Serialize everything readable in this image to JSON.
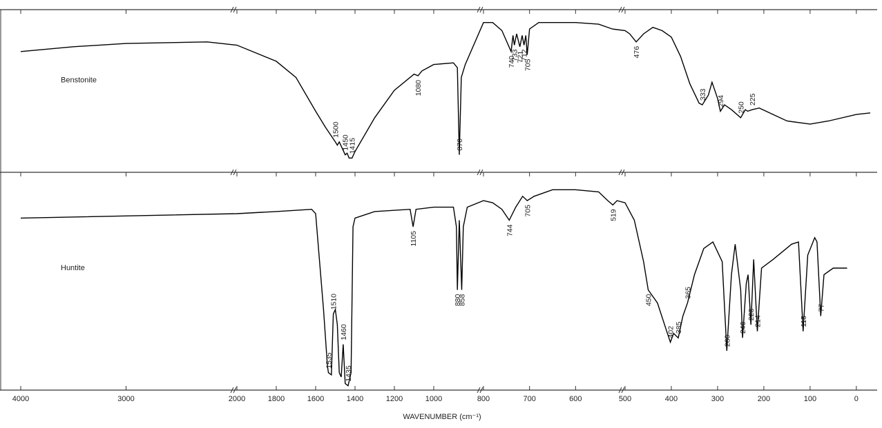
{
  "chart_data": {
    "type": "line",
    "xlabel": "WAVENUMBER (cm⁻¹)",
    "xlim": [
      4000,
      -45
    ],
    "xbreaks": [
      2000,
      800,
      500
    ],
    "ylim": [
      0,
      100
    ],
    "xticks": [
      4000,
      3000,
      2000,
      1800,
      1600,
      1400,
      1200,
      1000,
      800,
      700,
      600,
      500,
      400,
      300,
      200,
      100,
      0
    ],
    "series": [
      {
        "name": "Benstonite",
        "color": "#000000",
        "x": [
          4000,
          3500,
          3000,
          2230,
          2000,
          1800,
          1700,
          1600,
          1550,
          1500,
          1490,
          1480,
          1465,
          1450,
          1440,
          1430,
          1415,
          1400,
          1300,
          1200,
          1100,
          1080,
          1060,
          1000,
          900,
          880,
          870,
          860,
          840,
          800,
          780,
          760,
          740,
          736,
          733,
          728,
          721,
          716,
          712,
          708,
          705,
          700,
          680,
          650,
          600,
          550,
          520,
          500,
          490,
          476,
          460,
          440,
          420,
          400,
          380,
          360,
          340,
          333,
          320,
          312,
          300,
          294,
          285,
          270,
          250,
          240,
          235,
          225,
          210,
          180,
          150,
          100,
          60,
          0,
          -30
        ],
        "values": [
          74,
          77,
          79,
          80,
          78,
          68,
          58,
          37,
          27,
          18,
          16,
          18,
          14,
          10,
          11,
          8,
          8,
          12,
          33,
          50,
          60,
          59,
          62,
          66,
          67,
          64,
          10,
          58,
          66,
          92,
          92,
          87,
          74,
          84,
          78,
          85,
          77,
          84,
          78,
          84,
          72,
          88,
          92,
          92,
          92,
          91,
          88,
          87,
          85,
          80,
          85,
          89,
          87,
          83,
          71,
          54,
          42,
          41,
          47,
          55,
          45,
          37,
          41,
          38,
          33,
          38,
          37,
          38,
          39,
          35,
          31,
          29,
          31,
          35,
          36
        ],
        "annotations": [
          1500,
          1450,
          1415,
          1080,
          870,
          740,
          733,
          721,
          712,
          705,
          476,
          333,
          294,
          250,
          225
        ]
      },
      {
        "name": "Huntite",
        "color": "#000000",
        "x": [
          4000,
          2000,
          1800,
          1620,
          1600,
          1560,
          1540,
          1535,
          1520,
          1510,
          1500,
          1490,
          1480,
          1470,
          1460,
          1450,
          1435,
          1420,
          1410,
          1400,
          1300,
          1120,
          1105,
          1090,
          1000,
          900,
          885,
          880,
          870,
          858,
          850,
          830,
          800,
          780,
          760,
          744,
          730,
          715,
          705,
          690,
          650,
          600,
          550,
          530,
          519,
          510,
          500,
          480,
          460,
          450,
          430,
          410,
          402,
          395,
          385,
          375,
          365,
          350,
          330,
          310,
          290,
          280,
          270,
          262,
          250,
          246,
          238,
          234,
          228,
          222,
          214,
          205,
          180,
          140,
          125,
          115,
          105,
          90,
          85,
          77,
          70,
          50,
          20
        ],
        "values": [
          79,
          81,
          82,
          83,
          81,
          37,
          11,
          8,
          7,
          35,
          37,
          30,
          8,
          6,
          21,
          3,
          2,
          8,
          75,
          79,
          82,
          83,
          75,
          83,
          84,
          84,
          75,
          46,
          78,
          46,
          75,
          84,
          87,
          86,
          83,
          78,
          84,
          89,
          87,
          89,
          92,
          92,
          91,
          87,
          85,
          87,
          86,
          78,
          59,
          46,
          40,
          27,
          22,
          26,
          24,
          34,
          40,
          53,
          65,
          68,
          59,
          18,
          53,
          67,
          46,
          24,
          49,
          53,
          30,
          60,
          27,
          56,
          60,
          67,
          68,
          27,
          62,
          70,
          68,
          34,
          53,
          56,
          56
        ],
        "annotations": [
          1535,
          1510,
          1460,
          1435,
          1105,
          880,
          858,
          744,
          705,
          519,
          450,
          402,
          385,
          365,
          280,
          246,
          228,
          214,
          115,
          77
        ]
      }
    ]
  }
}
